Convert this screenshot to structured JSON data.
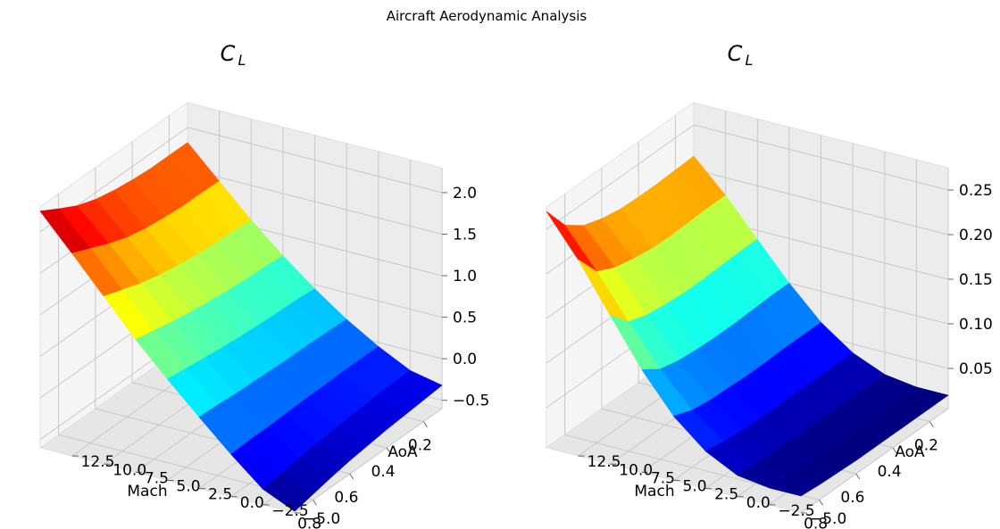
{
  "figure": {
    "suptitle": "Aircraft Aerodynamic Analysis"
  },
  "chart_data": [
    {
      "type": "surface",
      "title": "C",
      "title_subscript": "L",
      "xlabel": "Mach",
      "ylabel": "AoA",
      "zlabel": "",
      "colormap": "jet",
      "grid": true,
      "x": [
        0.1,
        0.2,
        0.3,
        0.4,
        0.5,
        0.6,
        0.7,
        0.8,
        0.9
      ],
      "y": [
        -5.0,
        -2.5,
        0.0,
        2.5,
        5.0,
        7.5,
        10.0,
        12.5,
        15.0
      ],
      "x_ticks": [
        "0.2",
        "0.4",
        "0.6",
        "0.8"
      ],
      "y_ticks": [
        "−5.0",
        "−2.5",
        "0.0",
        "2.5",
        "5.0",
        "7.5",
        "10.0",
        "12.5"
      ],
      "z_ticks": [
        "−0.5",
        "0.0",
        "0.5",
        "1.0",
        "1.5",
        "2.0"
      ],
      "xlim": [
        0.1,
        0.9
      ],
      "ylim": [
        -5.0,
        15.0
      ],
      "zlim": [
        -0.6,
        2.3
      ],
      "z": [
        [
          -0.32,
          -0.24,
          -0.05,
          0.18,
          0.45,
          0.75,
          1.08,
          1.45,
          1.82
        ],
        [
          -0.34,
          -0.25,
          -0.05,
          0.19,
          0.47,
          0.77,
          1.1,
          1.46,
          1.82
        ],
        [
          -0.36,
          -0.26,
          -0.05,
          0.2,
          0.48,
          0.78,
          1.11,
          1.46,
          1.82
        ],
        [
          -0.38,
          -0.28,
          -0.06,
          0.2,
          0.49,
          0.8,
          1.13,
          1.48,
          1.84
        ],
        [
          -0.41,
          -0.3,
          -0.06,
          0.21,
          0.51,
          0.83,
          1.16,
          1.51,
          1.87
        ],
        [
          -0.44,
          -0.32,
          -0.07,
          0.22,
          0.53,
          0.86,
          1.2,
          1.56,
          1.92
        ],
        [
          -0.48,
          -0.35,
          -0.08,
          0.23,
          0.56,
          0.9,
          1.26,
          1.64,
          2.0
        ],
        [
          -0.53,
          -0.38,
          -0.08,
          0.25,
          0.59,
          0.95,
          1.34,
          1.74,
          2.12
        ],
        [
          -0.58,
          -0.41,
          -0.09,
          0.26,
          0.62,
          1.0,
          1.42,
          1.84,
          2.25
        ]
      ]
    },
    {
      "type": "surface",
      "title": "C",
      "title_subscript": "L",
      "xlabel": "Mach",
      "ylabel": "AoA",
      "zlabel": "",
      "colormap": "jet",
      "grid": true,
      "x": [
        0.1,
        0.2,
        0.3,
        0.4,
        0.5,
        0.6,
        0.7,
        0.8,
        0.9
      ],
      "y": [
        -5.0,
        -2.5,
        0.0,
        2.5,
        5.0,
        7.5,
        10.0,
        12.5,
        15.0
      ],
      "x_ticks": [
        "0.2",
        "0.4",
        "0.6",
        "0.8"
      ],
      "y_ticks": [
        "−5.0",
        "−2.5",
        "0.0",
        "2.5",
        "5.0",
        "7.5",
        "10.0",
        "12.5"
      ],
      "z_ticks": [
        "0.05",
        "0.10",
        "0.15",
        "0.20",
        "0.25"
      ],
      "xlim": [
        0.1,
        0.9
      ],
      "ylim": [
        -5.0,
        15.0
      ],
      "zlim": [
        0.005,
        0.275
      ],
      "z": [
        [
          0.02,
          0.02,
          0.025,
          0.04,
          0.065,
          0.1,
          0.14,
          0.18,
          0.215
        ],
        [
          0.02,
          0.02,
          0.025,
          0.04,
          0.065,
          0.1,
          0.14,
          0.18,
          0.214
        ],
        [
          0.02,
          0.02,
          0.025,
          0.04,
          0.065,
          0.099,
          0.139,
          0.179,
          0.213
        ],
        [
          0.02,
          0.02,
          0.025,
          0.04,
          0.064,
          0.098,
          0.138,
          0.178,
          0.213
        ],
        [
          0.02,
          0.02,
          0.025,
          0.04,
          0.064,
          0.098,
          0.138,
          0.179,
          0.214
        ],
        [
          0.02,
          0.02,
          0.025,
          0.04,
          0.065,
          0.099,
          0.14,
          0.182,
          0.218
        ],
        [
          0.021,
          0.021,
          0.026,
          0.041,
          0.066,
          0.101,
          0.143,
          0.187,
          0.225
        ],
        [
          0.022,
          0.022,
          0.027,
          0.043,
          0.069,
          0.106,
          0.15,
          0.197,
          0.24
        ],
        [
          0.024,
          0.024,
          0.029,
          0.047,
          0.077,
          0.12,
          0.172,
          0.225,
          0.27
        ]
      ]
    }
  ]
}
